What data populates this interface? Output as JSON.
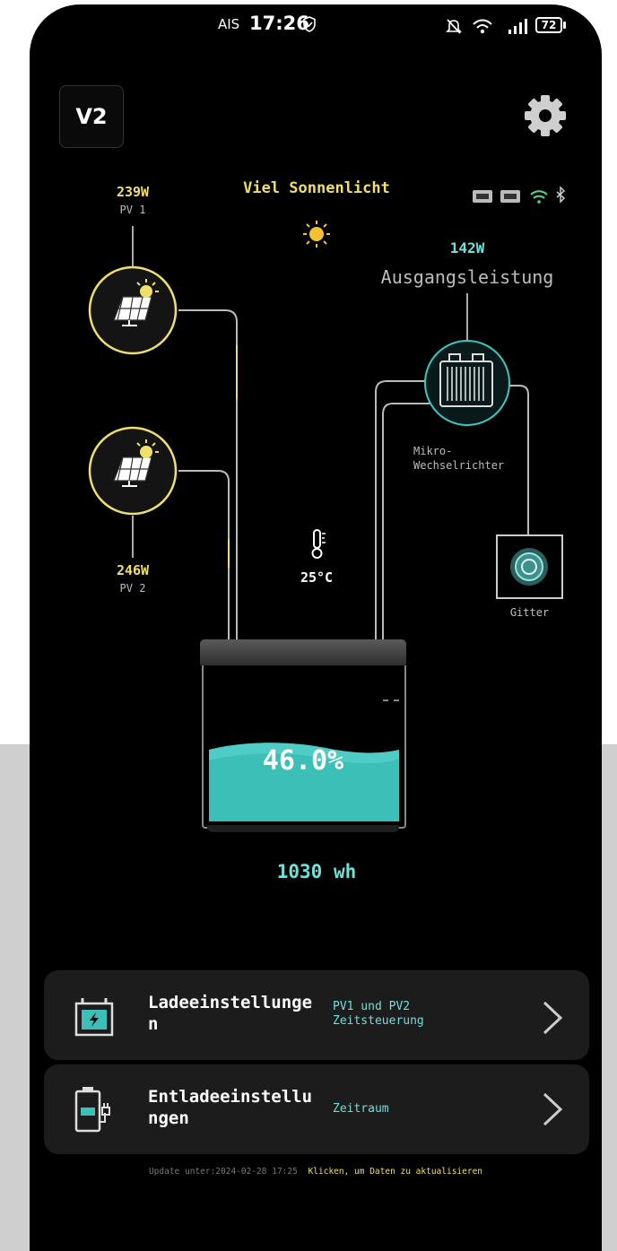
{
  "status_bar": {
    "carrier": "AIS",
    "time": "17:26",
    "battery": "72",
    "icons": [
      "shield-check-icon",
      "mute-icon",
      "wifi-icon",
      "signal-icon",
      "battery-icon"
    ]
  },
  "header": {
    "version_badge": "V2",
    "settings_icon": "gear-icon"
  },
  "diagram": {
    "weather_text": "Viel Sonnenlicht",
    "pv1": {
      "power": "239W",
      "label": "PV 1"
    },
    "pv2": {
      "power": "246W",
      "label": "PV 2"
    },
    "output": {
      "power": "142W",
      "label": "Ausgangsleistung"
    },
    "inverter_label_line1": "Mikro-",
    "inverter_label_line2": "Wechselrichter",
    "grid_label": "Gitter",
    "temperature": "25°C",
    "battery": {
      "percent": "46.0%",
      "level": 0.46,
      "energy": "1030 wh"
    },
    "colors": {
      "solar": "#f0df6a",
      "accent": "#6fe0dc",
      "battery_fill": "#3bbfb6"
    }
  },
  "settings": {
    "charge": {
      "title_line1": "Ladeeinstellunge",
      "title_line2": "n",
      "sub_line1": "PV1 und PV2",
      "sub_line2": "Zeitsteuerung"
    },
    "discharge": {
      "title_line1": "Entladeeinstellu",
      "title_line2": "ngen",
      "sub_line1": "Zeitraum"
    }
  },
  "footer": {
    "update_text": "Update unter:2024-02-28 17:25",
    "refresh_link": "Klicken, um Daten zu aktualisieren"
  }
}
